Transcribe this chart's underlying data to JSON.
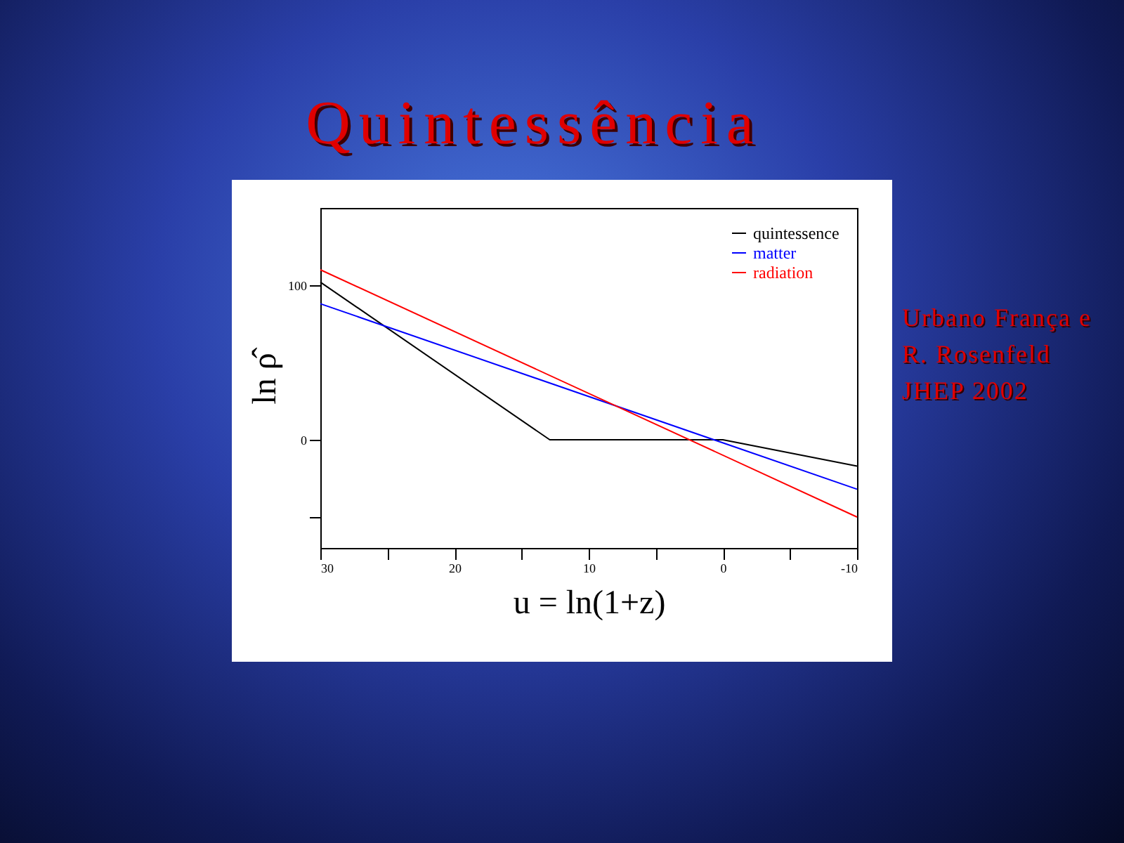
{
  "chart_data": {
    "type": "line",
    "title": "Quintessência",
    "xlabel": "u = ln(1+z)",
    "ylabel": "ln ρ̂",
    "annotations": [
      "Urbano França e R. Rosenfeld JHEP 2002"
    ],
    "xlim": [
      30,
      -10
    ],
    "xticks": [
      30,
      {
        "value": 25,
        "label": null
      },
      20,
      {
        "value": 15,
        "label": null
      },
      10,
      {
        "value": 5,
        "label": null
      },
      0,
      {
        "value": -5,
        "label": null
      },
      -10
    ],
    "ylim": [
      -70,
      150
    ],
    "yticks": [
      {
        "value": -50,
        "label": null
      },
      0,
      100
    ],
    "legend": "top right",
    "line_style": "solid",
    "grid": false,
    "series": [
      {
        "name": "quintessence",
        "color": "#000000",
        "x": [
          30,
          12.9,
          0,
          -10
        ],
        "values": [
          102,
          0,
          0,
          -17
        ]
      },
      {
        "name": "matter",
        "color": "#0000ff",
        "x": [
          30,
          -10
        ],
        "values": [
          88,
          -32
        ]
      },
      {
        "name": "radiation",
        "color": "#ff0000",
        "x": [
          30,
          -10
        ],
        "values": [
          110,
          -50
        ]
      }
    ]
  }
}
